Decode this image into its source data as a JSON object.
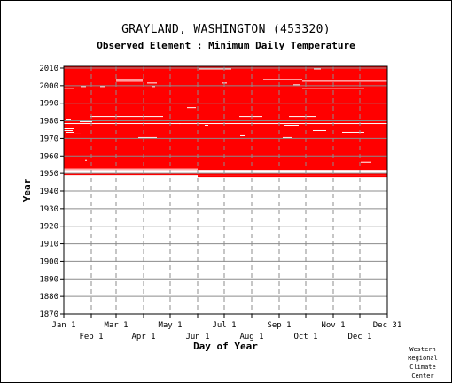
{
  "chart_data": {
    "type": "heatmap",
    "title": "GRAYLAND, WASHINGTON   (453320)",
    "subtitle": "Observed Element : Minimum Daily Temperature",
    "xlabel": "Day of Year",
    "ylabel": "Year",
    "xlim": [
      1,
      366
    ],
    "ylim": [
      1870,
      2011
    ],
    "x_ticks_top": [
      "Jan 1",
      "Mar 1",
      "May 1",
      "Jul 1",
      "Sep 1",
      "Nov 1",
      "Dec 31"
    ],
    "x_ticks_top_days": [
      1,
      60,
      121,
      182,
      244,
      305,
      366
    ],
    "x_ticks_bottom": [
      "Feb 1",
      "Apr 1",
      "Jun 1",
      "Aug 1",
      "Oct 1",
      "Dec 1"
    ],
    "x_ticks_bottom_days": [
      32,
      91,
      152,
      213,
      274,
      335
    ],
    "y_ticks": [
      1870,
      1880,
      1890,
      1900,
      1910,
      1920,
      1930,
      1940,
      1950,
      1960,
      1970,
      1980,
      1990,
      2000,
      2010
    ],
    "grid": true,
    "colors": {
      "observed": "#ff0000",
      "missing": "#ffffff",
      "grid": "#8c8c8c"
    },
    "observed_year_range": [
      1948,
      2010
    ],
    "observed_periods": [
      {
        "year_start": 1948,
        "year_end": 1948,
        "day_start": 152,
        "day_end": 366
      },
      {
        "year_start": 1949,
        "year_end": 1949,
        "day_start": 1,
        "day_end": 366
      },
      {
        "year_start": 1952,
        "year_end": 2010,
        "day_start": 1,
        "day_end": 366
      }
    ],
    "missing_gaps": [
      {
        "year": 1950,
        "day_start": 1,
        "day_end": 366
      },
      {
        "year": 1951,
        "day_start": 1,
        "day_end": 366
      },
      {
        "year": 1952,
        "day_start": 1,
        "day_end": 152
      },
      {
        "year": 2009,
        "day_start": 153,
        "day_end": 190
      },
      {
        "year": 2009,
        "day_start": 283,
        "day_end": 291
      },
      {
        "year": 2003,
        "day_start": 60,
        "day_end": 90
      },
      {
        "year": 2002,
        "day_start": 60,
        "day_end": 90
      },
      {
        "year": 2003,
        "day_start": 226,
        "day_end": 270
      },
      {
        "year": 2002,
        "day_start": 270,
        "day_end": 366
      },
      {
        "year": 2001,
        "day_start": 95,
        "day_end": 106
      },
      {
        "year": 2001,
        "day_start": 180,
        "day_end": 185
      },
      {
        "year": 2000,
        "day_start": 260,
        "day_end": 268
      },
      {
        "year": 1999,
        "day_start": 20,
        "day_end": 26
      },
      {
        "year": 1999,
        "day_start": 42,
        "day_end": 48
      },
      {
        "year": 1999,
        "day_start": 100,
        "day_end": 104
      },
      {
        "year": 1998,
        "day_start": 1,
        "day_end": 12
      },
      {
        "year": 1998,
        "day_start": 270,
        "day_end": 340
      },
      {
        "year": 1987,
        "day_start": 140,
        "day_end": 150
      },
      {
        "year": 1982,
        "day_start": 30,
        "day_end": 113
      },
      {
        "year": 1982,
        "day_start": 199,
        "day_end": 225
      },
      {
        "year": 1982,
        "day_start": 255,
        "day_end": 286
      },
      {
        "year": 1980,
        "day_start": 4,
        "day_end": 9
      },
      {
        "year": 1979,
        "day_start": 19,
        "day_end": 33
      },
      {
        "year": 1978,
        "day_start": 1,
        "day_end": 366
      },
      {
        "year": 1978,
        "day_start": 131,
        "day_end": 132
      },
      {
        "year": 1977,
        "day_start": 160,
        "day_end": 164
      },
      {
        "year": 1977,
        "day_start": 250,
        "day_end": 266
      },
      {
        "year": 1975,
        "day_start": 1,
        "day_end": 12
      },
      {
        "year": 1974,
        "day_start": 1,
        "day_end": 11
      },
      {
        "year": 1974,
        "day_start": 282,
        "day_end": 297
      },
      {
        "year": 1973,
        "day_start": 4,
        "day_end": 12
      },
      {
        "year": 1973,
        "day_start": 315,
        "day_end": 340
      },
      {
        "year": 1972,
        "day_start": 13,
        "day_end": 20
      },
      {
        "year": 1971,
        "day_start": 200,
        "day_end": 205
      },
      {
        "year": 1970,
        "day_start": 85,
        "day_end": 106
      },
      {
        "year": 1970,
        "day_start": 248,
        "day_end": 258
      },
      {
        "year": 1957,
        "day_start": 25,
        "day_end": 27
      },
      {
        "year": 1956,
        "day_start": 336,
        "day_end": 348
      }
    ],
    "credit": [
      "Western",
      "Regional",
      "Climate",
      "Center"
    ]
  }
}
